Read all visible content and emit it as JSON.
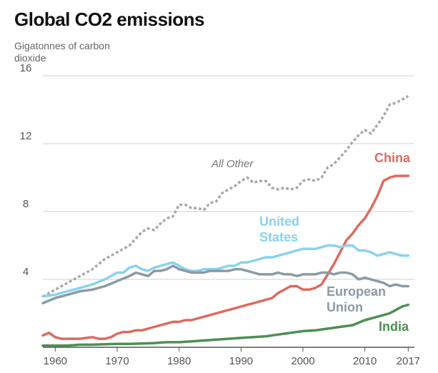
{
  "title": "Global CO2 emissions",
  "ylabel": "Gigatonnes of carbon dioxide",
  "chart_data": {
    "type": "line",
    "title": "Global CO2 emissions",
    "xlabel": "",
    "ylabel": "Gigatonnes of carbon dioxide",
    "xlim": [
      1958,
      2018
    ],
    "ylim": [
      0,
      16
    ],
    "x_ticks": [
      1960,
      1970,
      1980,
      1990,
      2000,
      2010,
      2017
    ],
    "y_ticks": [
      4,
      8,
      12,
      16
    ],
    "grid": "horizontal",
    "colors": {
      "All Other": "#aaaaaa",
      "China": "#dd6b5f",
      "United States": "#87d3ee",
      "European Union": "#8a9ba6",
      "India": "#4d8f53"
    },
    "series": [
      {
        "name": "All Other",
        "style": "dotted",
        "x": [
          1958,
          1960,
          1962,
          1964,
          1966,
          1968,
          1970,
          1972,
          1974,
          1975,
          1976,
          1977,
          1978,
          1979,
          1980,
          1981,
          1982,
          1983,
          1984,
          1985,
          1986,
          1987,
          1988,
          1989,
          1990,
          1991,
          1992,
          1993,
          1994,
          1995,
          1996,
          1997,
          1998,
          1999,
          2000,
          2001,
          2002,
          2003,
          2004,
          2005,
          2006,
          2007,
          2008,
          2009,
          2010,
          2011,
          2012,
          2013,
          2014,
          2015,
          2016,
          2017
        ],
        "values": [
          3.0,
          3.4,
          3.8,
          4.2,
          4.6,
          5.2,
          5.6,
          6.0,
          6.8,
          7.0,
          6.9,
          7.3,
          7.6,
          7.7,
          8.4,
          8.4,
          8.2,
          8.2,
          8.1,
          8.5,
          8.6,
          9.1,
          9.3,
          9.5,
          9.8,
          10.0,
          9.7,
          9.8,
          9.8,
          9.4,
          9.3,
          9.4,
          9.3,
          9.4,
          9.8,
          9.9,
          9.8,
          10.0,
          10.6,
          10.8,
          11.2,
          11.6,
          12.1,
          12.5,
          12.8,
          12.6,
          13.1,
          13.6,
          14.3,
          14.4,
          14.6,
          14.8
        ]
      },
      {
        "name": "China",
        "x": [
          1958,
          1959,
          1960,
          1961,
          1962,
          1963,
          1964,
          1965,
          1966,
          1967,
          1968,
          1969,
          1970,
          1971,
          1972,
          1973,
          1974,
          1975,
          1976,
          1977,
          1978,
          1979,
          1980,
          1981,
          1982,
          1983,
          1984,
          1985,
          1986,
          1987,
          1988,
          1989,
          1990,
          1991,
          1992,
          1993,
          1994,
          1995,
          1996,
          1997,
          1998,
          1999,
          2000,
          2001,
          2002,
          2003,
          2004,
          2005,
          2006,
          2007,
          2008,
          2009,
          2010,
          2011,
          2012,
          2013,
          2014,
          2015,
          2016,
          2017
        ],
        "values": [
          0.7,
          0.85,
          0.6,
          0.5,
          0.5,
          0.5,
          0.5,
          0.55,
          0.6,
          0.5,
          0.5,
          0.6,
          0.8,
          0.9,
          0.9,
          1.0,
          1.0,
          1.1,
          1.2,
          1.3,
          1.4,
          1.5,
          1.5,
          1.6,
          1.6,
          1.7,
          1.8,
          1.9,
          2.0,
          2.1,
          2.2,
          2.3,
          2.4,
          2.5,
          2.6,
          2.7,
          2.8,
          2.9,
          3.2,
          3.4,
          3.6,
          3.6,
          3.4,
          3.4,
          3.5,
          3.7,
          4.3,
          4.9,
          5.6,
          6.3,
          6.7,
          7.2,
          7.6,
          8.2,
          8.9,
          9.8,
          10.0,
          10.1,
          10.1,
          10.1
        ]
      },
      {
        "name": "United States",
        "x": [
          1958,
          1960,
          1962,
          1964,
          1966,
          1968,
          1970,
          1971,
          1972,
          1973,
          1974,
          1975,
          1976,
          1977,
          1978,
          1979,
          1980,
          1981,
          1982,
          1983,
          1984,
          1985,
          1986,
          1987,
          1988,
          1989,
          1990,
          1991,
          1992,
          1993,
          1994,
          1995,
          1996,
          1997,
          1998,
          1999,
          2000,
          2001,
          2002,
          2003,
          2004,
          2005,
          2006,
          2007,
          2008,
          2009,
          2010,
          2011,
          2012,
          2013,
          2014,
          2015,
          2016,
          2017
        ],
        "values": [
          3.0,
          3.1,
          3.3,
          3.5,
          3.7,
          4.0,
          4.4,
          4.4,
          4.7,
          4.8,
          4.6,
          4.5,
          4.7,
          4.8,
          4.9,
          5.0,
          4.8,
          4.6,
          4.5,
          4.5,
          4.6,
          4.6,
          4.6,
          4.7,
          4.8,
          4.8,
          5.0,
          5.0,
          5.1,
          5.2,
          5.3,
          5.3,
          5.4,
          5.5,
          5.6,
          5.7,
          5.8,
          5.8,
          5.8,
          5.9,
          6.0,
          6.0,
          5.9,
          6.0,
          6.0,
          5.7,
          5.7,
          5.6,
          5.4,
          5.5,
          5.6,
          5.5,
          5.4,
          5.4
        ]
      },
      {
        "name": "European Union",
        "x": [
          1958,
          1960,
          1962,
          1964,
          1966,
          1968,
          1970,
          1972,
          1973,
          1974,
          1975,
          1976,
          1977,
          1978,
          1979,
          1980,
          1981,
          1982,
          1983,
          1984,
          1985,
          1986,
          1987,
          1988,
          1989,
          1990,
          1991,
          1992,
          1993,
          1994,
          1995,
          1996,
          1997,
          1998,
          1999,
          2000,
          2001,
          2002,
          2003,
          2004,
          2005,
          2006,
          2007,
          2008,
          2009,
          2010,
          2011,
          2012,
          2013,
          2014,
          2015,
          2016,
          2017
        ],
        "values": [
          2.6,
          2.9,
          3.1,
          3.3,
          3.4,
          3.6,
          3.9,
          4.2,
          4.4,
          4.3,
          4.2,
          4.5,
          4.5,
          4.6,
          4.8,
          4.6,
          4.5,
          4.4,
          4.4,
          4.4,
          4.5,
          4.5,
          4.5,
          4.5,
          4.6,
          4.6,
          4.5,
          4.4,
          4.3,
          4.3,
          4.3,
          4.4,
          4.3,
          4.3,
          4.2,
          4.3,
          4.3,
          4.3,
          4.4,
          4.4,
          4.3,
          4.4,
          4.4,
          4.3,
          4.0,
          4.1,
          4.0,
          3.9,
          3.8,
          3.6,
          3.7,
          3.6,
          3.6
        ]
      },
      {
        "name": "India",
        "x": [
          1958,
          1960,
          1962,
          1964,
          1966,
          1968,
          1970,
          1972,
          1974,
          1976,
          1978,
          1980,
          1982,
          1984,
          1986,
          1988,
          1990,
          1992,
          1994,
          1996,
          1998,
          2000,
          2002,
          2004,
          2006,
          2008,
          2010,
          2012,
          2014,
          2015,
          2016,
          2017
        ],
        "values": [
          0.1,
          0.1,
          0.1,
          0.15,
          0.15,
          0.18,
          0.2,
          0.2,
          0.22,
          0.25,
          0.3,
          0.3,
          0.35,
          0.4,
          0.45,
          0.5,
          0.55,
          0.6,
          0.65,
          0.75,
          0.85,
          0.95,
          1.0,
          1.1,
          1.2,
          1.3,
          1.6,
          1.8,
          2.0,
          2.2,
          2.4,
          2.5
        ]
      }
    ]
  },
  "labels": {
    "all_other": "All Other",
    "china": "China",
    "united_states_line1": "United",
    "united_states_line2": "States",
    "european_union_line1": "European",
    "european_union_line2": "Union",
    "india": "India"
  }
}
